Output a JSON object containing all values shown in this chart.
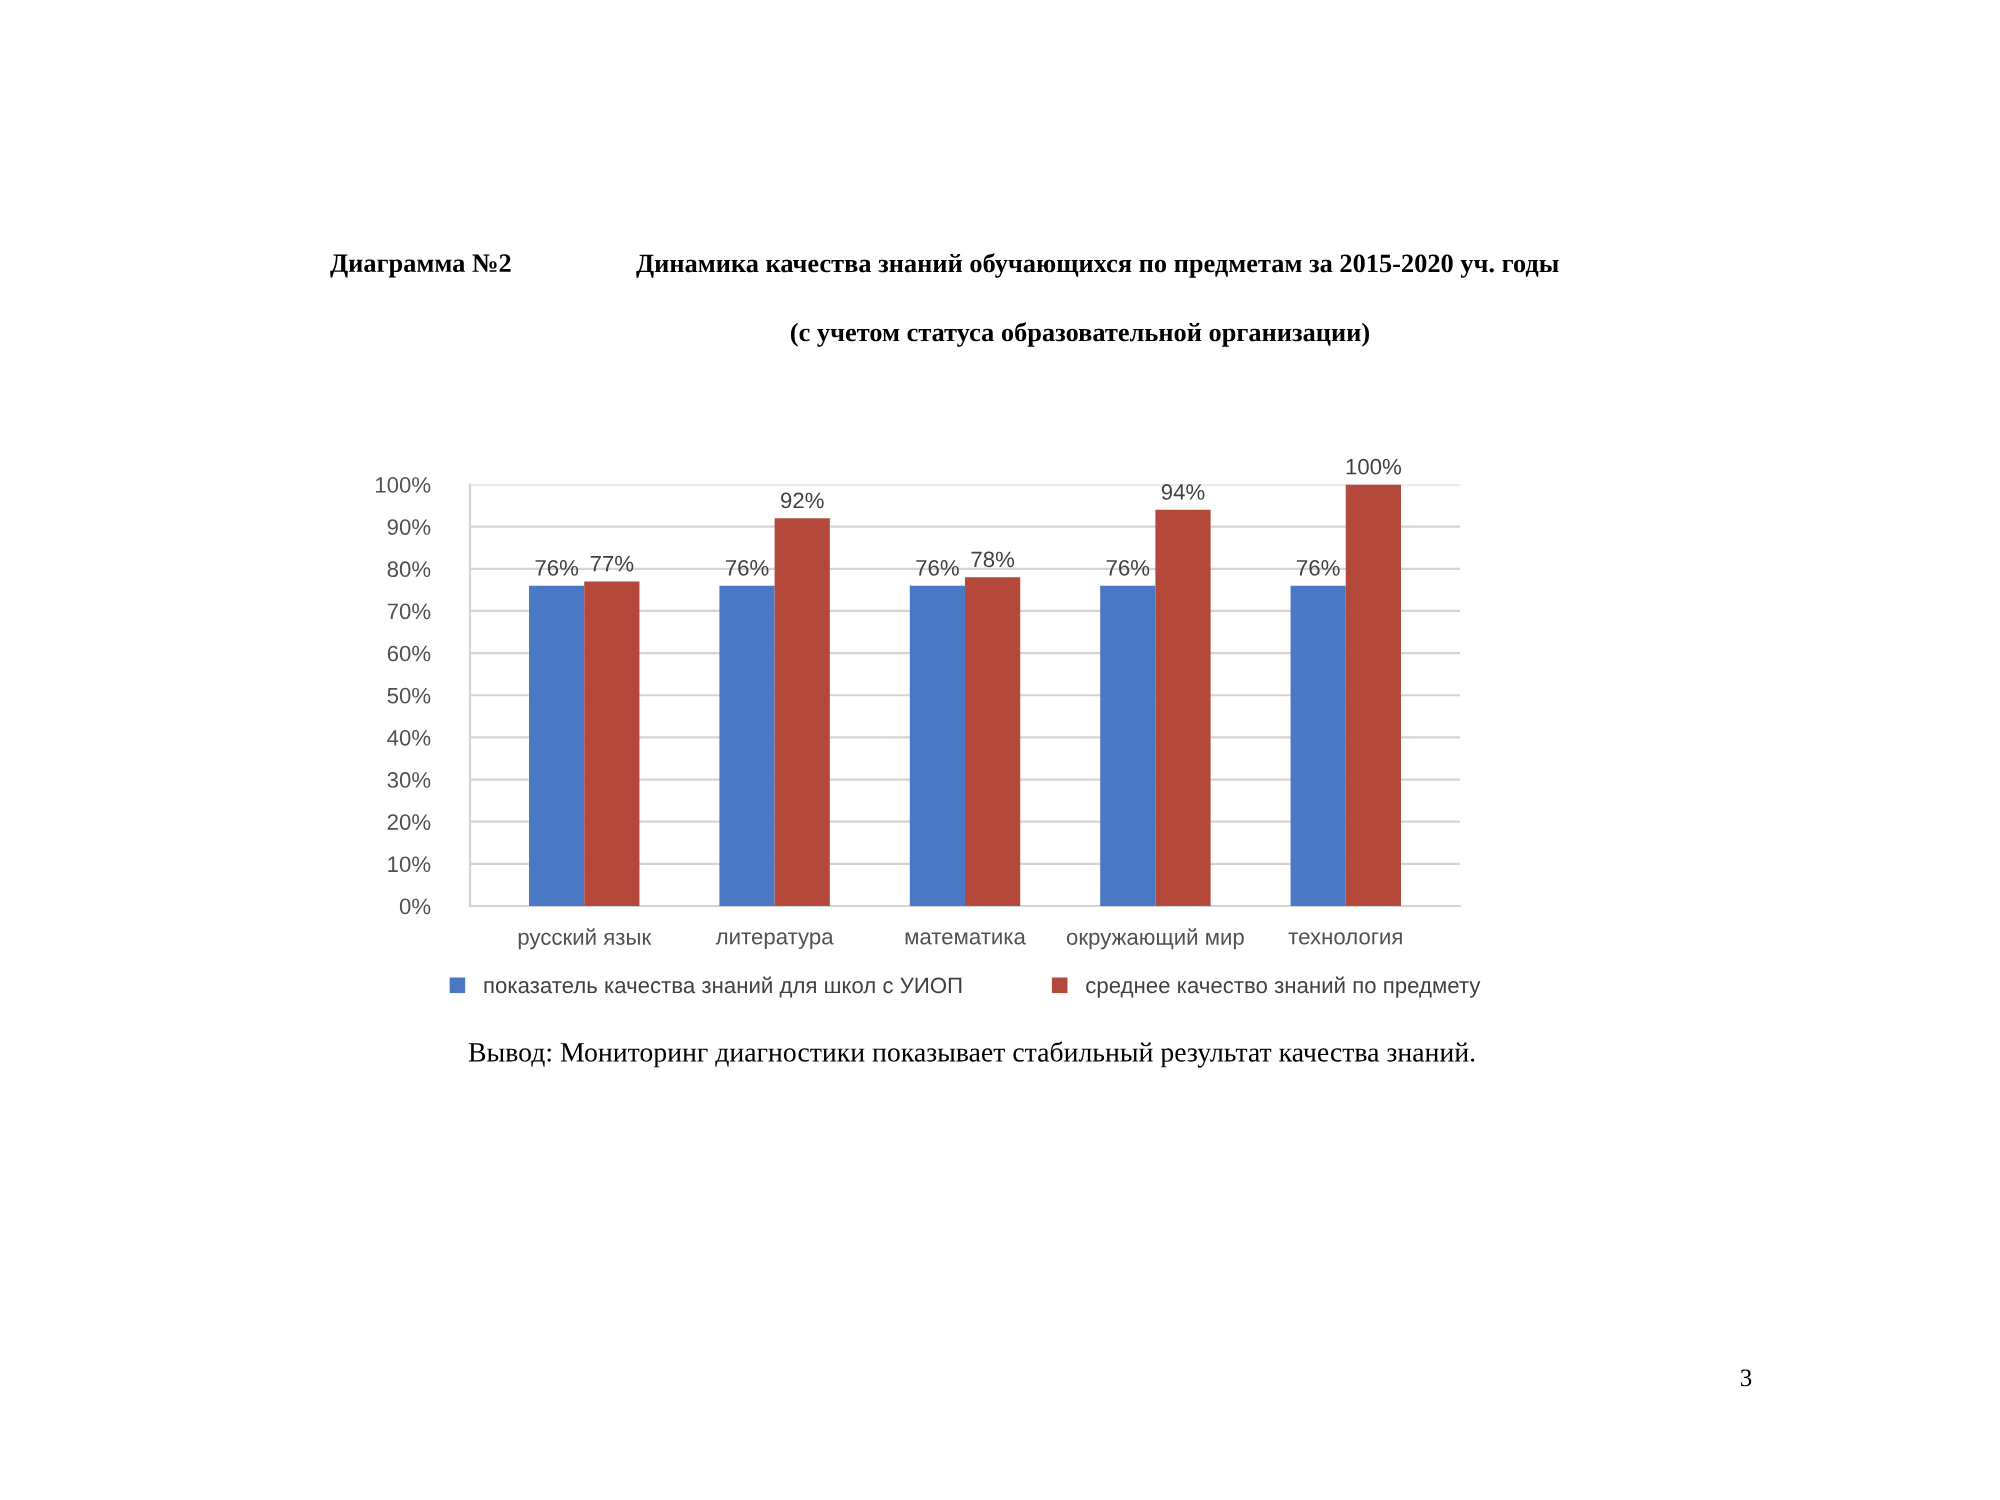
{
  "chart_data": {
    "type": "bar",
    "title": "Динамика качества знаний обучающихся по предметам за 2015-2020 уч. годы",
    "subtitle": "(с учетом статуса образовательной организации)",
    "annotations": [
      "Диаграмма №2",
      "Вывод: Мониторинг диагностики показывает стабильный результат качества знаний.",
      "3"
    ],
    "categories": [
      "русский язык",
      "литература",
      "математика",
      "окружающий мир",
      "технология"
    ],
    "series": [
      {
        "name": "показатель качества знаний для школ с УИОП",
        "color": "#4a78c4",
        "values": [
          76,
          76,
          76,
          76,
          76
        ],
        "value_labels": [
          "76%",
          "76%",
          "76%",
          "76%",
          "76%"
        ]
      },
      {
        "name": "среднее качество знаний по предмету",
        "color": "#b4483a",
        "values": [
          77,
          92,
          78,
          94,
          100
        ],
        "value_labels": [
          "77%",
          "92%",
          "78%",
          "94%",
          "100%"
        ]
      }
    ],
    "ylim": [
      0,
      100
    ],
    "yticks": [
      {
        "value": 0,
        "label": "0%"
      },
      {
        "value": 10,
        "label": "10%"
      },
      {
        "value": 20,
        "label": "20%"
      },
      {
        "value": 30,
        "label": "30%"
      },
      {
        "value": 40,
        "label": "40%"
      },
      {
        "value": 50,
        "label": "50%"
      },
      {
        "value": 60,
        "label": "60%"
      },
      {
        "value": 70,
        "label": "70%"
      },
      {
        "value": 80,
        "label": "80%"
      },
      {
        "value": 90,
        "label": "90%"
      },
      {
        "value": 100,
        "label": "100%"
      }
    ],
    "grid": "y",
    "legend": "bottom"
  }
}
